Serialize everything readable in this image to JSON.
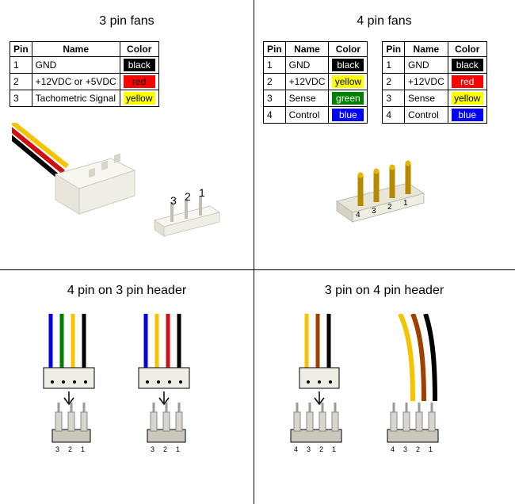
{
  "panel_3pin": {
    "title": "3 pin fans",
    "table": {
      "columns": [
        "Pin",
        "Name",
        "Color"
      ],
      "rows": [
        {
          "pin": "1",
          "name": "GND",
          "color_label": "black",
          "bg": "#000000",
          "fg": "#ffffff"
        },
        {
          "pin": "2",
          "name": "+12VDC or +5VDC",
          "color_label": "red",
          "bg": "#ff0000",
          "fg": "#000000"
        },
        {
          "pin": "3",
          "name": "Tachometric Signal",
          "color_label": "yellow",
          "bg": "#ffff00",
          "fg": "#000000"
        }
      ]
    },
    "connector_body": "#f7f6f1",
    "connector_shadow": "#cfcbc0",
    "wire_colors": [
      "#000000",
      "#d01010",
      "#f5c400"
    ],
    "pin_labels": [
      "1",
      "2",
      "3"
    ]
  },
  "panel_4pin": {
    "title": "4 pin fans",
    "tableA": {
      "columns": [
        "Pin",
        "Name",
        "Color"
      ],
      "rows": [
        {
          "pin": "1",
          "name": "GND",
          "color_label": "black",
          "bg": "#000000",
          "fg": "#ffffff"
        },
        {
          "pin": "2",
          "name": "+12VDC",
          "color_label": "yellow",
          "bg": "#ffff00",
          "fg": "#000000"
        },
        {
          "pin": "3",
          "name": "Sense",
          "color_label": "green",
          "bg": "#008000",
          "fg": "#ffffff"
        },
        {
          "pin": "4",
          "name": "Control",
          "color_label": "blue",
          "bg": "#0000ff",
          "fg": "#ffffff"
        }
      ]
    },
    "tableB": {
      "columns": [
        "Pin",
        "Name",
        "Color"
      ],
      "rows": [
        {
          "pin": "1",
          "name": "GND",
          "color_label": "black",
          "bg": "#000000",
          "fg": "#ffffff"
        },
        {
          "pin": "2",
          "name": "+12VDC",
          "color_label": "red",
          "bg": "#ff0000",
          "fg": "#ffffff"
        },
        {
          "pin": "3",
          "name": "Sense",
          "color_label": "yellow",
          "bg": "#ffff00",
          "fg": "#000000"
        },
        {
          "pin": "4",
          "name": "Control",
          "color_label": "blue",
          "bg": "#0000ff",
          "fg": "#ffffff"
        }
      ]
    },
    "header_body": "#e8e6d8",
    "pin_gold": "#e8b500",
    "pin_labels": [
      "1",
      "2",
      "3",
      "4"
    ]
  },
  "panel_4on3": {
    "title": "4 pin on 3 pin header",
    "wire_colorsA": [
      "#0000e0",
      "#008000",
      "#f5c400",
      "#000000"
    ],
    "wire_colorsB": [
      "#0000e0",
      "#f5c400",
      "#d01010",
      "#000000"
    ],
    "header_body": "#cac7bd",
    "pin_labels": [
      "3",
      "2",
      "1"
    ]
  },
  "panel_3on4": {
    "title": "3 pin on 4 pin header",
    "wire_colors_plug": [
      "#f5c400",
      "#a04000",
      "#000000"
    ],
    "wire_colors_header": [
      "#f5c400",
      "#a04000",
      "#000000"
    ],
    "header_body": "#cac7bd",
    "pin_labels": [
      "4",
      "3",
      "2",
      "1"
    ]
  },
  "style": {
    "font_family": "Arial, sans-serif",
    "title_fontsize": 16,
    "table_fontsize": 12,
    "label_fontsize": 11,
    "background": "#ffffff",
    "border_color": "#000000"
  }
}
